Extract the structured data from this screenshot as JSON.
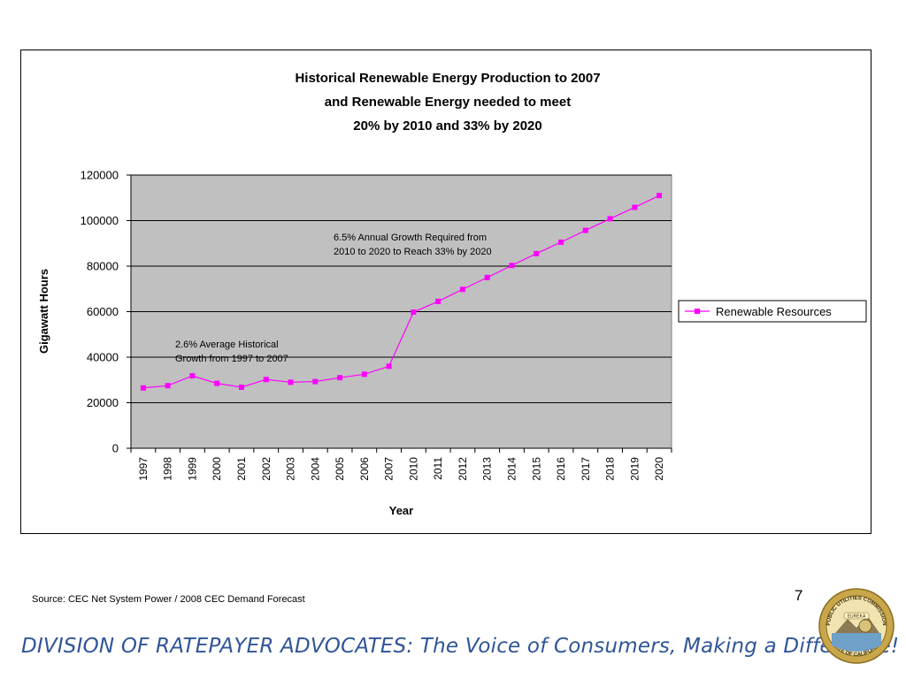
{
  "chart_data": {
    "type": "line",
    "title_lines": [
      "Historical Renewable Energy Production to 2007",
      "and Renewable Energy needed to meet",
      "20% by 2010 and 33% by 2020"
    ],
    "xlabel": "Year",
    "ylabel": "Gigawatt Hours",
    "ylim": [
      0,
      120000
    ],
    "yticks": [
      "0",
      "20000",
      "40000",
      "60000",
      "80000",
      "100000",
      "120000"
    ],
    "categories": [
      "1997",
      "1998",
      "1999",
      "2000",
      "2001",
      "2002",
      "2003",
      "2004",
      "2005",
      "2006",
      "2007",
      "2010",
      "2011",
      "2012",
      "2013",
      "2014",
      "2015",
      "2016",
      "2017",
      "2018",
      "2019",
      "2020"
    ],
    "series": [
      {
        "name": "Renewable Resources",
        "color": "#ff00ff",
        "values": [
          26500,
          27500,
          31800,
          28500,
          26800,
          30200,
          29000,
          29300,
          31000,
          32500,
          36000,
          59800,
          64500,
          69800,
          75000,
          80300,
          85500,
          90500,
          95700,
          100800,
          105800,
          111000
        ]
      }
    ],
    "grid": true,
    "plot_background": "#c0c0c0",
    "legend_position": "right",
    "annotations": [
      {
        "lines": [
          "6.5% Annual Growth Required from",
          "2010 to 2020 to Reach 33% by 2020"
        ]
      },
      {
        "lines": [
          "2.6% Average Historical",
          "Growth from 1997 to 2007"
        ]
      }
    ]
  },
  "source_note": "Source: CEC Net System Power / 2008 CEC Demand Forecast",
  "page_number": "7",
  "footer_banner": "DIVISION OF RATEPAYER ADVOCATES: The Voice of Consumers, Making a Difference!",
  "seal": {
    "text_top": "PUBLIC UTILITIES COMMISSION",
    "text_bottom": "STATE OF CALIFORNIA",
    "ribbon": "EUREKA"
  }
}
